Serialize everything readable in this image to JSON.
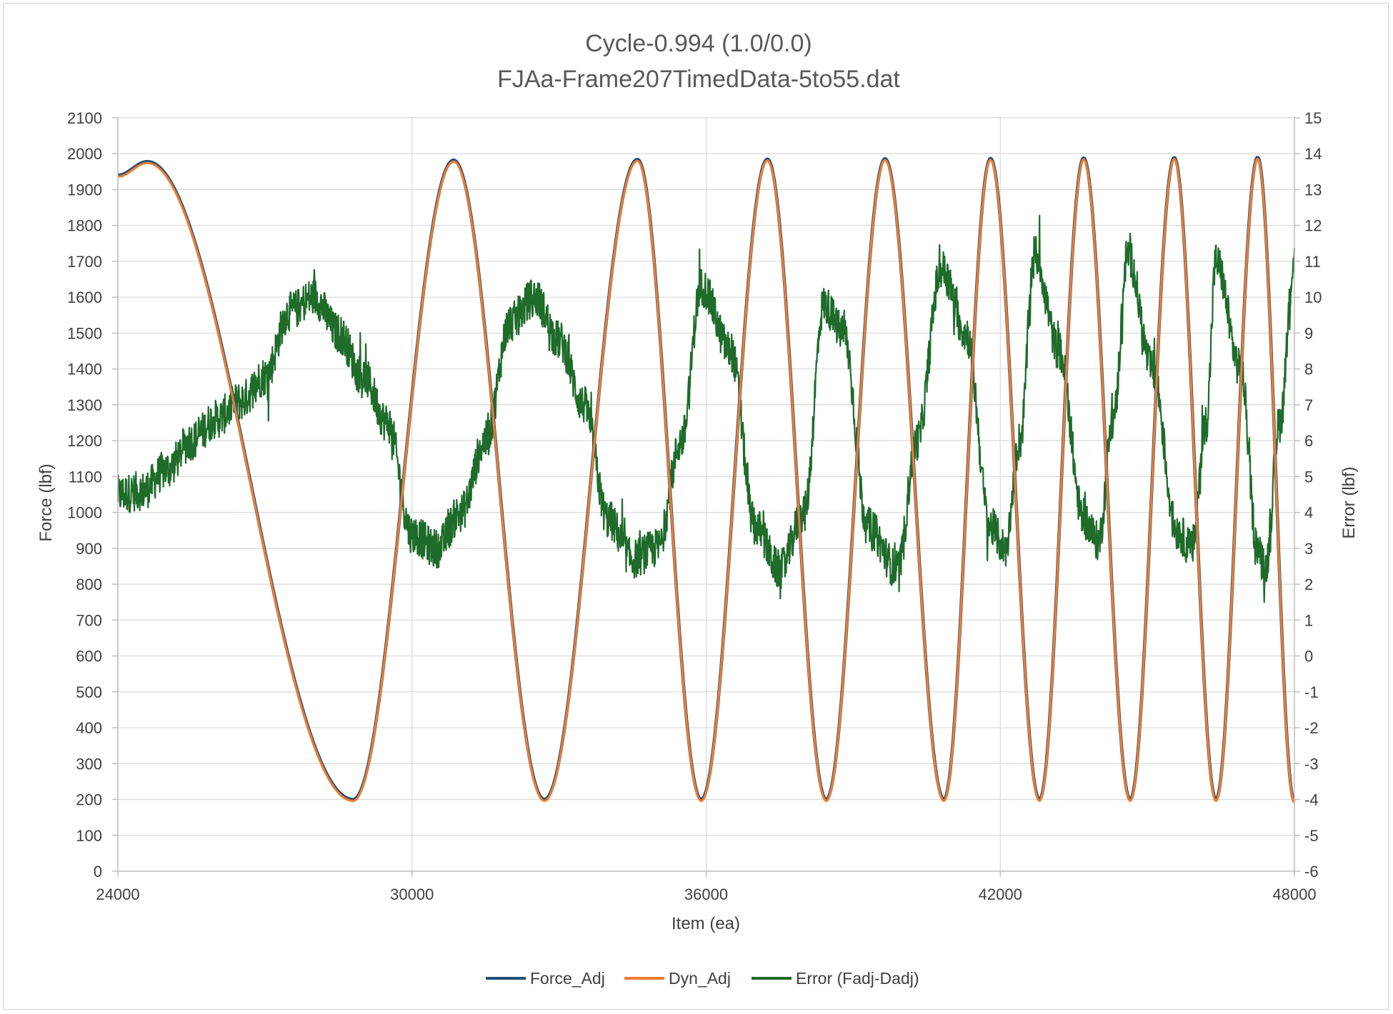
{
  "chart_data": {
    "type": "line",
    "title_line1": "Cycle-0.994 (1.0/0.0)",
    "title_line2": "FJAa-Frame207TimedData-5to55.dat",
    "xlabel": "Item (ea)",
    "ylabel": "Force (lbf)",
    "y2label": "Error (lbf)",
    "xlim": [
      24000,
      48000
    ],
    "ylim": [
      0,
      2100
    ],
    "y2lim": [
      -6,
      15
    ],
    "x_ticks": [
      "24000",
      "30000",
      "36000",
      "42000",
      "48000"
    ],
    "y_ticks": [
      "0",
      "100",
      "200",
      "300",
      "400",
      "500",
      "600",
      "700",
      "800",
      "900",
      "1000",
      "1100",
      "1200",
      "1300",
      "1400",
      "1500",
      "1600",
      "1700",
      "1800",
      "1900",
      "2000",
      "2100"
    ],
    "y2_ticks": [
      "-6",
      "-5",
      "-4",
      "-3",
      "-2",
      "-1",
      "0",
      "1",
      "2",
      "3",
      "4",
      "5",
      "6",
      "7",
      "8",
      "9",
      "10",
      "11",
      "12",
      "13",
      "14",
      "15"
    ],
    "grid": true,
    "legend_position": "bottom",
    "force_peaks": [
      {
        "x": 24600,
        "y": 1978
      },
      {
        "x": 30850,
        "y": 1982
      },
      {
        "x": 34600,
        "y": 1984
      },
      {
        "x": 37250,
        "y": 1985
      },
      {
        "x": 39650,
        "y": 1986
      },
      {
        "x": 41800,
        "y": 1987
      },
      {
        "x": 43700,
        "y": 1988
      },
      {
        "x": 45550,
        "y": 1989
      },
      {
        "x": 47250,
        "y": 1990
      }
    ],
    "force_troughs": [
      {
        "x": 28800,
        "y": 200
      },
      {
        "x": 32700,
        "y": 200
      },
      {
        "x": 35900,
        "y": 200
      },
      {
        "x": 38450,
        "y": 200
      },
      {
        "x": 40850,
        "y": 200
      },
      {
        "x": 42800,
        "y": 200
      },
      {
        "x": 44650,
        "y": 200
      },
      {
        "x": 46400,
        "y": 200
      }
    ],
    "force_start": {
      "x": 24000,
      "y": 1940
    },
    "force_end": {
      "x": 48000,
      "y": 195
    },
    "error_mean_points": [
      {
        "x": 24000,
        "y": 4.5
      },
      {
        "x": 24500,
        "y": 4.6
      },
      {
        "x": 25000,
        "y": 5.2
      },
      {
        "x": 25500,
        "y": 6.0
      },
      {
        "x": 26000,
        "y": 6.6
      },
      {
        "x": 26500,
        "y": 7.1
      },
      {
        "x": 27000,
        "y": 7.8
      },
      {
        "x": 27500,
        "y": 9.6
      },
      {
        "x": 28000,
        "y": 10.0
      },
      {
        "x": 28500,
        "y": 9.0
      },
      {
        "x": 29000,
        "y": 7.8
      },
      {
        "x": 29500,
        "y": 6.5
      },
      {
        "x": 30000,
        "y": 3.4
      },
      {
        "x": 30500,
        "y": 3.0
      },
      {
        "x": 31000,
        "y": 4.0
      },
      {
        "x": 31500,
        "y": 6.0
      },
      {
        "x": 32000,
        "y": 9.3
      },
      {
        "x": 32500,
        "y": 10.0
      },
      {
        "x": 33000,
        "y": 8.8
      },
      {
        "x": 33500,
        "y": 7.0
      },
      {
        "x": 34000,
        "y": 3.8
      },
      {
        "x": 34500,
        "y": 2.7
      },
      {
        "x": 35000,
        "y": 3.0
      },
      {
        "x": 35500,
        "y": 6.0
      },
      {
        "x": 35900,
        "y": 10.3
      },
      {
        "x": 36500,
        "y": 8.5
      },
      {
        "x": 37000,
        "y": 3.6
      },
      {
        "x": 37500,
        "y": 2.4
      },
      {
        "x": 38000,
        "y": 4.0
      },
      {
        "x": 38400,
        "y": 9.8
      },
      {
        "x": 38800,
        "y": 9.0
      },
      {
        "x": 39300,
        "y": 3.6
      },
      {
        "x": 39900,
        "y": 2.4
      },
      {
        "x": 40300,
        "y": 6.0
      },
      {
        "x": 40800,
        "y": 10.8
      },
      {
        "x": 41300,
        "y": 9.0
      },
      {
        "x": 41800,
        "y": 3.6
      },
      {
        "x": 42100,
        "y": 3.0
      },
      {
        "x": 42400,
        "y": 6.0
      },
      {
        "x": 42700,
        "y": 11.2
      },
      {
        "x": 43200,
        "y": 8.5
      },
      {
        "x": 43700,
        "y": 3.8
      },
      {
        "x": 44000,
        "y": 3.2
      },
      {
        "x": 44300,
        "y": 6.5
      },
      {
        "x": 44600,
        "y": 11.2
      },
      {
        "x": 45100,
        "y": 8.0
      },
      {
        "x": 45600,
        "y": 3.5
      },
      {
        "x": 45900,
        "y": 3.0
      },
      {
        "x": 46200,
        "y": 6.5
      },
      {
        "x": 46400,
        "y": 11.0
      },
      {
        "x": 46900,
        "y": 8.0
      },
      {
        "x": 47250,
        "y": 3.0
      },
      {
        "x": 47400,
        "y": 2.4
      },
      {
        "x": 47700,
        "y": 6.5
      },
      {
        "x": 48000,
        "y": 11.0
      }
    ],
    "error_noise_amplitude": 0.55,
    "series": [
      {
        "name": "Force_Adj",
        "color": "#1f4e79",
        "axis": "left"
      },
      {
        "name": "Dyn_Adj",
        "color": "#ed7d31",
        "axis": "left"
      },
      {
        "name": "Error (Fadj-Dadj)",
        "color": "#1e6b2a",
        "axis": "right"
      }
    ]
  }
}
